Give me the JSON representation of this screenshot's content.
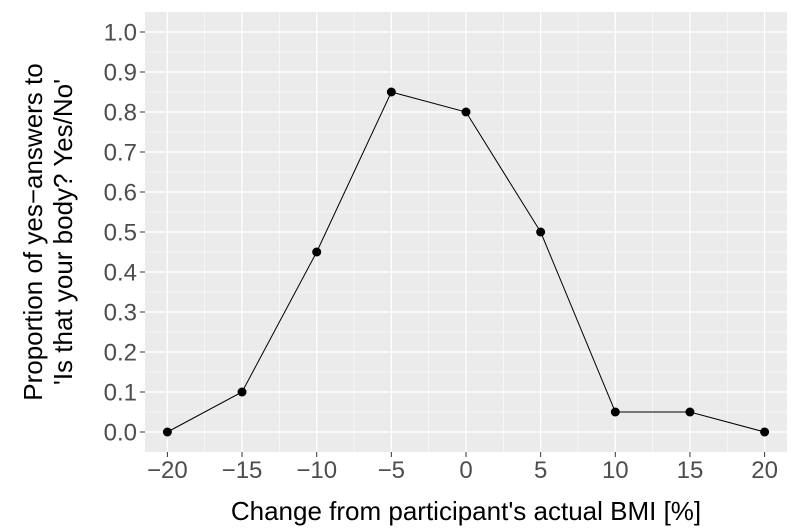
{
  "chart_data": {
    "type": "line",
    "title": "",
    "xlabel": "Change from participant's actual BMI [%]",
    "ylabel_lines": [
      "Proportion of yes−answers to",
      "'Is that your body? Yes/No'"
    ],
    "x": [
      -20,
      -15,
      -10,
      -5,
      0,
      5,
      10,
      15,
      20
    ],
    "series": [
      {
        "values": [
          0.0,
          0.1,
          0.45,
          0.85,
          0.8,
          0.5,
          0.05,
          0.05,
          0.0
        ]
      }
    ],
    "xlim": [
      -21.5,
      21.5
    ],
    "ylim": [
      -0.05,
      1.05
    ],
    "xticks": [
      -20,
      -15,
      -10,
      -5,
      0,
      5,
      10,
      15,
      20
    ],
    "xtick_labels": [
      "−20",
      "−15",
      "−10",
      "−5",
      "0",
      "5",
      "10",
      "15",
      "20"
    ],
    "yticks": [
      0.0,
      0.1,
      0.2,
      0.3,
      0.4,
      0.5,
      0.6,
      0.7,
      0.8,
      0.9,
      1.0
    ],
    "ytick_labels": [
      "0.0",
      "0.1",
      "0.2",
      "0.3",
      "0.4",
      "0.5",
      "0.6",
      "0.7",
      "0.8",
      "0.9",
      "1.0"
    ],
    "grid": true,
    "colors": {
      "panel": "#ebebeb",
      "grid_major": "#ffffff",
      "line": "#000000",
      "point": "#000000",
      "tick_text": "#4d4d4d"
    }
  }
}
